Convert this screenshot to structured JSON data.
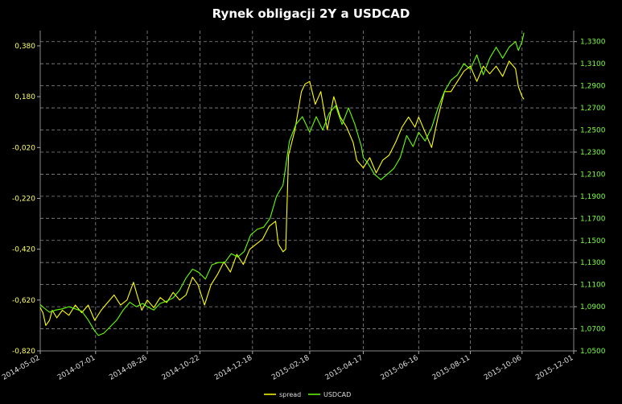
{
  "chart_data": {
    "type": "line",
    "title": "Rynek obligacji 2Y a USDCAD",
    "x_ticks": [
      "2014-05-02",
      "2014-07-01",
      "2014-08-26",
      "2014-10-22",
      "2014-12-18",
      "2015-02-18",
      "2015-04-17",
      "2015-06-16",
      "2015-08-11",
      "2015-10-06",
      "2015-12-01"
    ],
    "y_left": {
      "ticks": [
        "0,380",
        "0,180",
        "-0,020",
        "-0,220",
        "-0,420",
        "-0,620",
        "-0,820"
      ],
      "min": -0.82,
      "max": 0.44
    },
    "y_right": {
      "ticks": [
        "1,3300",
        "1,3100",
        "1,2900",
        "1,2700",
        "1,2500",
        "1,2300",
        "1,2100",
        "1,1900",
        "1,1700",
        "1,1500",
        "1,1300",
        "1,1100",
        "1,0900",
        "1,0700",
        "1,0500"
      ],
      "min": 1.05,
      "max": 1.34
    },
    "grid": true,
    "legend_position": "bottom-center",
    "series": [
      {
        "name": "spread",
        "axis": "left",
        "color": "#ffff00",
        "points": [
          [
            "2014-05-02",
            -0.65
          ],
          [
            "2014-05-05",
            -0.67
          ],
          [
            "2014-05-08",
            -0.72
          ],
          [
            "2014-05-12",
            -0.7
          ],
          [
            "2014-05-15",
            -0.66
          ],
          [
            "2014-05-20",
            -0.69
          ],
          [
            "2014-05-26",
            -0.66
          ],
          [
            "2014-06-02",
            -0.68
          ],
          [
            "2014-06-09",
            -0.64
          ],
          [
            "2014-06-16",
            -0.67
          ],
          [
            "2014-06-23",
            -0.64
          ],
          [
            "2014-06-30",
            -0.7
          ],
          [
            "2014-07-07",
            -0.66
          ],
          [
            "2014-07-14",
            -0.63
          ],
          [
            "2014-07-21",
            -0.6
          ],
          [
            "2014-07-28",
            -0.64
          ],
          [
            "2014-08-04",
            -0.62
          ],
          [
            "2014-08-11",
            -0.55
          ],
          [
            "2014-08-15",
            -0.6
          ],
          [
            "2014-08-20",
            -0.66
          ],
          [
            "2014-08-26",
            -0.62
          ],
          [
            "2014-09-02",
            -0.65
          ],
          [
            "2014-09-09",
            -0.61
          ],
          [
            "2014-09-16",
            -0.63
          ],
          [
            "2014-09-23",
            -0.59
          ],
          [
            "2014-09-30",
            -0.62
          ],
          [
            "2014-10-07",
            -0.6
          ],
          [
            "2014-10-14",
            -0.53
          ],
          [
            "2014-10-20",
            -0.56
          ],
          [
            "2014-10-27",
            -0.64
          ],
          [
            "2014-11-03",
            -0.56
          ],
          [
            "2014-11-10",
            -0.52
          ],
          [
            "2014-11-17",
            -0.47
          ],
          [
            "2014-11-24",
            -0.51
          ],
          [
            "2014-12-01",
            -0.44
          ],
          [
            "2014-12-08",
            -0.48
          ],
          [
            "2014-12-15",
            -0.42
          ],
          [
            "2014-12-22",
            -0.4
          ],
          [
            "2014-12-29",
            -0.38
          ],
          [
            "2015-01-05",
            -0.33
          ],
          [
            "2015-01-12",
            -0.31
          ],
          [
            "2015-01-15",
            -0.4
          ],
          [
            "2015-01-20",
            -0.43
          ],
          [
            "2015-01-23",
            -0.42
          ],
          [
            "2015-01-26",
            -0.05
          ],
          [
            "2015-02-02",
            0.05
          ],
          [
            "2015-02-09",
            0.2
          ],
          [
            "2015-02-13",
            0.23
          ],
          [
            "2015-02-18",
            0.24
          ],
          [
            "2015-02-24",
            0.15
          ],
          [
            "2015-03-02",
            0.2
          ],
          [
            "2015-03-09",
            0.05
          ],
          [
            "2015-03-16",
            0.18
          ],
          [
            "2015-03-23",
            0.1
          ],
          [
            "2015-03-30",
            0.06
          ],
          [
            "2015-04-06",
            0.0
          ],
          [
            "2015-04-10",
            -0.07
          ],
          [
            "2015-04-17",
            -0.1
          ],
          [
            "2015-04-24",
            -0.06
          ],
          [
            "2015-05-01",
            -0.12
          ],
          [
            "2015-05-08",
            -0.07
          ],
          [
            "2015-05-15",
            -0.05
          ],
          [
            "2015-05-22",
            0.0
          ],
          [
            "2015-05-29",
            0.06
          ],
          [
            "2015-06-05",
            0.1
          ],
          [
            "2015-06-12",
            0.06
          ],
          [
            "2015-06-16",
            0.1
          ],
          [
            "2015-06-23",
            0.04
          ],
          [
            "2015-06-30",
            -0.02
          ],
          [
            "2015-07-07",
            0.1
          ],
          [
            "2015-07-14",
            0.2
          ],
          [
            "2015-07-21",
            0.2
          ],
          [
            "2015-07-28",
            0.24
          ],
          [
            "2015-08-04",
            0.28
          ],
          [
            "2015-08-11",
            0.3
          ],
          [
            "2015-08-18",
            0.24
          ],
          [
            "2015-08-25",
            0.3
          ],
          [
            "2015-09-01",
            0.27
          ],
          [
            "2015-09-08",
            0.3
          ],
          [
            "2015-09-15",
            0.26
          ],
          [
            "2015-09-22",
            0.32
          ],
          [
            "2015-09-29",
            0.29
          ],
          [
            "2015-10-02",
            0.22
          ],
          [
            "2015-10-06",
            0.18
          ],
          [
            "2015-10-08",
            0.17
          ]
        ]
      },
      {
        "name": "USDCAD",
        "axis": "right",
        "color": "#66ff00",
        "points": [
          [
            "2014-05-02",
            1.092
          ],
          [
            "2014-05-06",
            1.089
          ],
          [
            "2014-05-12",
            1.085
          ],
          [
            "2014-05-19",
            1.087
          ],
          [
            "2014-05-26",
            1.088
          ],
          [
            "2014-06-02",
            1.09
          ],
          [
            "2014-06-09",
            1.088
          ],
          [
            "2014-06-16",
            1.086
          ],
          [
            "2014-06-23",
            1.078
          ],
          [
            "2014-06-30",
            1.068
          ],
          [
            "2014-07-04",
            1.064
          ],
          [
            "2014-07-10",
            1.066
          ],
          [
            "2014-07-17",
            1.072
          ],
          [
            "2014-07-24",
            1.078
          ],
          [
            "2014-07-31",
            1.087
          ],
          [
            "2014-08-07",
            1.094
          ],
          [
            "2014-08-14",
            1.09
          ],
          [
            "2014-08-21",
            1.093
          ],
          [
            "2014-08-26",
            1.09
          ],
          [
            "2014-09-02",
            1.087
          ],
          [
            "2014-09-09",
            1.093
          ],
          [
            "2014-09-16",
            1.095
          ],
          [
            "2014-09-23",
            1.098
          ],
          [
            "2014-09-30",
            1.105
          ],
          [
            "2014-10-07",
            1.116
          ],
          [
            "2014-10-14",
            1.124
          ],
          [
            "2014-10-21",
            1.121
          ],
          [
            "2014-10-28",
            1.115
          ],
          [
            "2014-11-04",
            1.128
          ],
          [
            "2014-11-11",
            1.13
          ],
          [
            "2014-11-18",
            1.13
          ],
          [
            "2014-11-25",
            1.138
          ],
          [
            "2014-12-02",
            1.135
          ],
          [
            "2014-12-09",
            1.14
          ],
          [
            "2014-12-16",
            1.155
          ],
          [
            "2014-12-23",
            1.16
          ],
          [
            "2014-12-30",
            1.162
          ],
          [
            "2015-01-06",
            1.17
          ],
          [
            "2015-01-13",
            1.19
          ],
          [
            "2015-01-20",
            1.2
          ],
          [
            "2015-01-27",
            1.24
          ],
          [
            "2015-02-03",
            1.255
          ],
          [
            "2015-02-10",
            1.262
          ],
          [
            "2015-02-18",
            1.248
          ],
          [
            "2015-02-25",
            1.262
          ],
          [
            "2015-03-04",
            1.25
          ],
          [
            "2015-03-11",
            1.265
          ],
          [
            "2015-03-18",
            1.272
          ],
          [
            "2015-03-25",
            1.255
          ],
          [
            "2015-04-01",
            1.27
          ],
          [
            "2015-04-08",
            1.255
          ],
          [
            "2015-04-15",
            1.235
          ],
          [
            "2015-04-17",
            1.225
          ],
          [
            "2015-04-22",
            1.22
          ],
          [
            "2015-04-29",
            1.21
          ],
          [
            "2015-05-06",
            1.205
          ],
          [
            "2015-05-13",
            1.21
          ],
          [
            "2015-05-20",
            1.215
          ],
          [
            "2015-05-27",
            1.225
          ],
          [
            "2015-06-03",
            1.245
          ],
          [
            "2015-06-10",
            1.235
          ],
          [
            "2015-06-16",
            1.248
          ],
          [
            "2015-06-23",
            1.24
          ],
          [
            "2015-06-30",
            1.252
          ],
          [
            "2015-07-07",
            1.27
          ],
          [
            "2015-07-14",
            1.285
          ],
          [
            "2015-07-21",
            1.295
          ],
          [
            "2015-07-28",
            1.3
          ],
          [
            "2015-08-04",
            1.31
          ],
          [
            "2015-08-11",
            1.305
          ],
          [
            "2015-08-18",
            1.318
          ],
          [
            "2015-08-25",
            1.3
          ],
          [
            "2015-09-01",
            1.315
          ],
          [
            "2015-09-08",
            1.325
          ],
          [
            "2015-09-15",
            1.315
          ],
          [
            "2015-09-22",
            1.325
          ],
          [
            "2015-09-29",
            1.33
          ],
          [
            "2015-10-02",
            1.322
          ],
          [
            "2015-10-06",
            1.33
          ],
          [
            "2015-10-08",
            1.338
          ]
        ]
      }
    ]
  }
}
